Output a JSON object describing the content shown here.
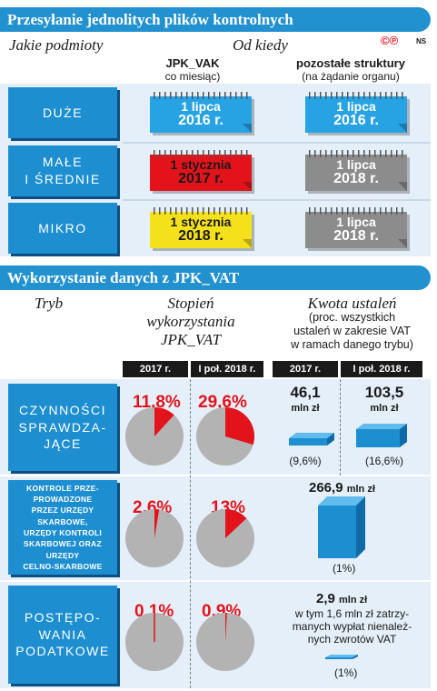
{
  "section1": {
    "title": "Przesyłanie jednolitych plików kontrolnych",
    "logo_text": "©℗",
    "logo_suffix": "NS",
    "col_who": "Jakie podmioty",
    "col_since": "Od kiedy",
    "jpk_vak": "JPK_VAK",
    "jpk_vak_sub": "co miesiąc)",
    "other": "pozostałe struktury",
    "other_sub": "(na żądanie organu)",
    "rows": [
      {
        "label": "DUŻE",
        "vak_line1": "1 lipca",
        "vak_line2": "2016 r.",
        "vak_color": "#27a3e3",
        "other_line1": "1 lipca",
        "other_line2": "2016 r.",
        "other_color": "#27a3e3"
      },
      {
        "label": "MAŁE\nI ŚREDNIE",
        "vak_line1": "1 stycznia",
        "vak_line2": "2017 r.",
        "vak_color": "#e3131b",
        "other_line1": "1 lipca",
        "other_line2": "2018 r.",
        "other_color": "#8c8c8c"
      },
      {
        "label": "MIKRO",
        "vak_line1": "1 stycznia",
        "vak_line2": "2018 r.",
        "vak_color": "#f5e11b",
        "other_line1": "1 lipca",
        "other_line2": "2018 r.",
        "other_color": "#8c8c8c"
      }
    ]
  },
  "section2": {
    "title": "Wykorzystanie danych z JPK_VAT",
    "col_tryb": "Tryb",
    "col_stopien": "Stopień\nwykorzystania\nJPK_VAT",
    "col_kwota": "Kwota ustaleń",
    "col_kwota_sub": "(proc. wszystkich\nustaleń w zakresie VAT\nw ramach danego trybu)",
    "hdr_2017": "2017 r.",
    "hdr_2018": "I poł. 2018 r.",
    "rows": [
      {
        "label": "CZYNNOŚCI\nSPRAWDZA-\nJĄCE",
        "pct_2017": "11,8%",
        "pct_2018": "29,6%",
        "kwota_2017": "46,1",
        "kwota_2018": "103,5",
        "unit": "mln zł",
        "share_2017": "(9,6%)",
        "share_2018": "(16,6%)"
      },
      {
        "label": "KONTROLE PRZE-\nPROWADZONE\nPRZEZ URZĘDY\nSKARBOWE,\nURZĘDY KONTROLI\nSKARBOWEJ ORAZ\nURZĘDY\nCELNO-SKARBOWE",
        "pct_2017": "2,6%",
        "pct_2018": "13%",
        "kwota": "266,9",
        "unit": "mln zł",
        "share": "(1%)"
      },
      {
        "label": "POSTĘPO-\nWANIA\nPODATKOWE",
        "pct_2017": "0,1%",
        "pct_2018": "0,9%",
        "kwota": "2,9",
        "unit": "mln zł",
        "note": "w tym 1,6 mln zł zatrzy-\nmanych wypłat nienależ-\nnych zwrotów VAT",
        "share": "(1%)"
      }
    ]
  },
  "chart_data": [
    {
      "type": "pie",
      "title": "Stopień wykorzystania JPK_VAT",
      "categories": [
        "CZYNNOŚCI SPRAWDZAJĄCE",
        "KONTROLE",
        "POSTĘPOWANIA PODATKOWE"
      ],
      "series": [
        {
          "name": "2017 r.",
          "values": [
            11.8,
            2.6,
            0.1
          ]
        },
        {
          "name": "I poł. 2018 r.",
          "values": [
            29.6,
            13,
            0.9
          ]
        }
      ],
      "colors": {
        "slice": "#e3131b",
        "rest": "#b3b3b3"
      }
    },
    {
      "type": "bar",
      "title": "Kwota ustaleń",
      "ylabel": "mln zł",
      "values": [
        46.1,
        103.5,
        266.9,
        2.9
      ]
    }
  ],
  "colors": {
    "accent": "#2191cf",
    "panel": "#e4eff9",
    "red": "#e3131b",
    "yellow": "#f5e11b",
    "grey": "#8c8c8c"
  }
}
